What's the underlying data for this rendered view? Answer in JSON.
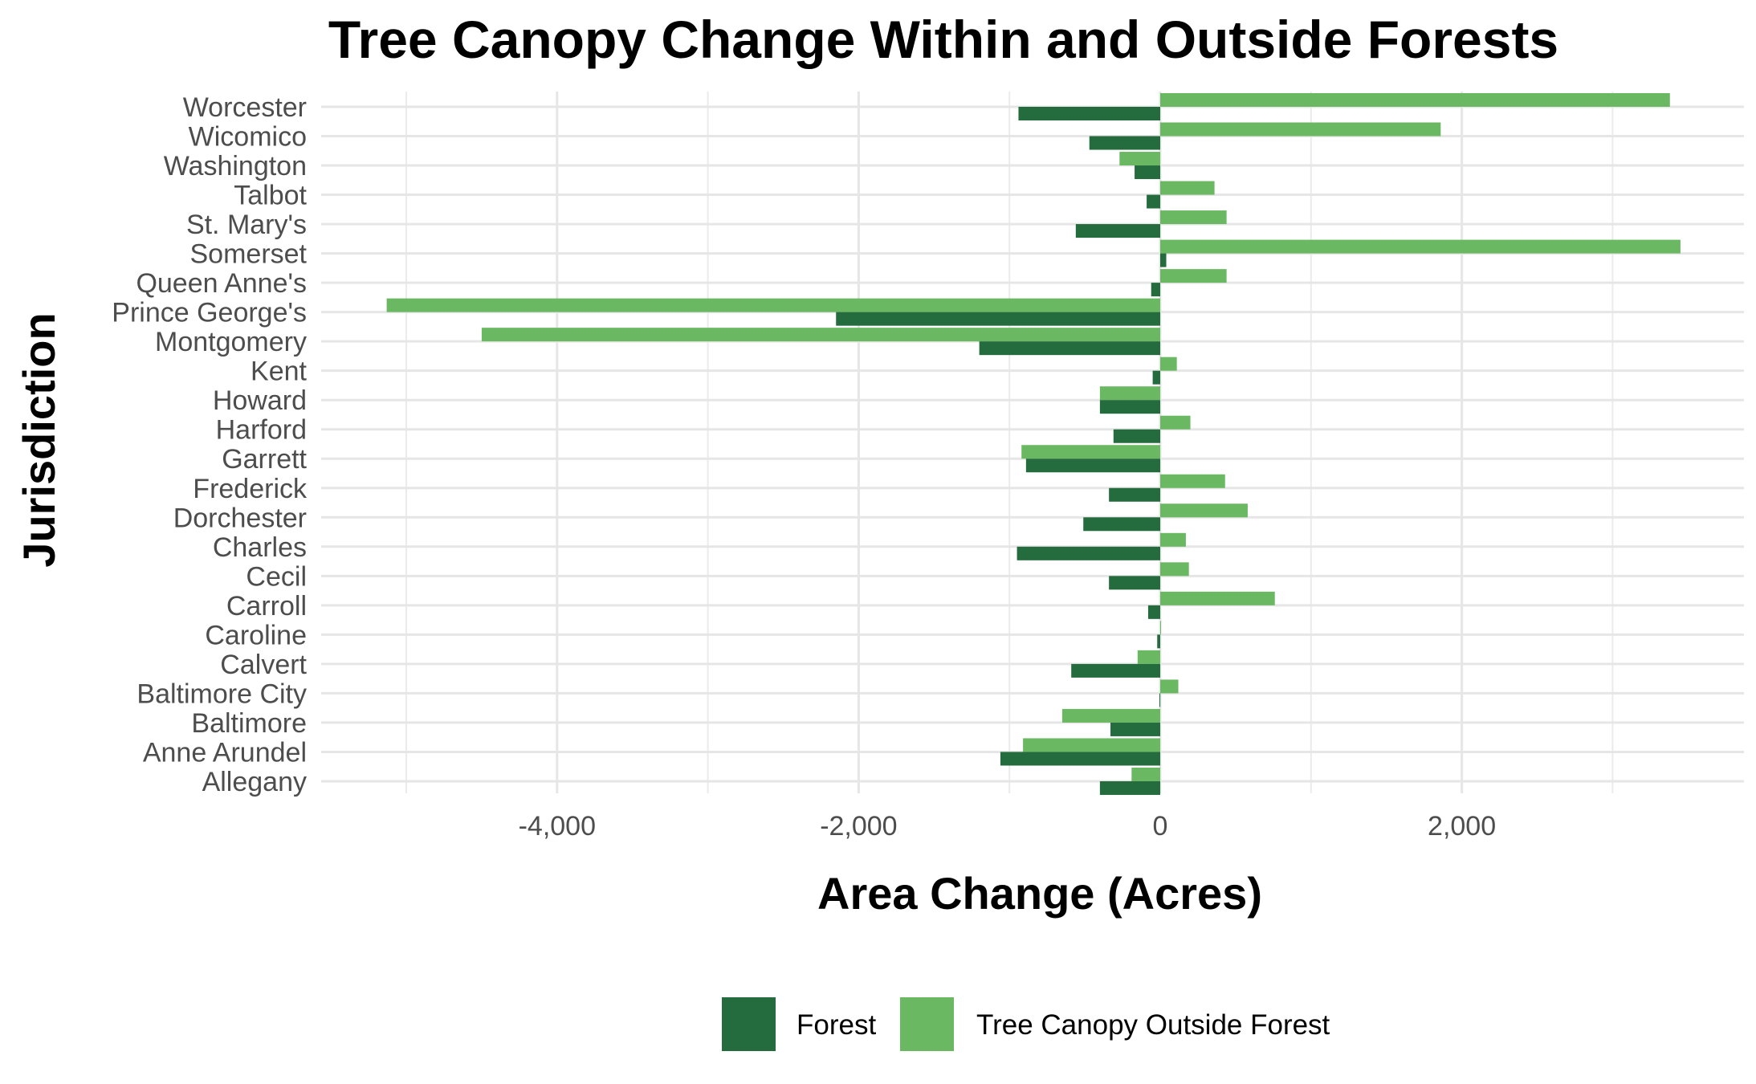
{
  "chart_data": {
    "type": "bar",
    "orientation": "horizontal",
    "title": "Tree Canopy Change Within and Outside Forests",
    "xlabel": "Area Change (Acres)",
    "ylabel": "Jurisdiction",
    "xlim": [
      -5500,
      3850
    ],
    "x_ticks": [
      -4000,
      -2000,
      0,
      2000
    ],
    "x_tick_labels": [
      "-4,000",
      "-2,000",
      "0",
      "2,000"
    ],
    "grid": true,
    "legend_position": "bottom",
    "colors": {
      "Forest": "#246b3d",
      "Tree Canopy Outside Forest": "#6ab862"
    },
    "categories": [
      "Worcester",
      "Wicomico",
      "Washington",
      "Talbot",
      "St. Mary's",
      "Somerset",
      "Queen Anne's",
      "Prince George's",
      "Montgomery",
      "Kent",
      "Howard",
      "Harford",
      "Garrett",
      "Frederick",
      "Dorchester",
      "Charles",
      "Cecil",
      "Carroll",
      "Caroline",
      "Calvert",
      "Baltimore City",
      "Baltimore",
      "Anne Arundel",
      "Allegany"
    ],
    "series": [
      {
        "name": "Forest",
        "values": [
          -940,
          -470,
          -170,
          -90,
          -560,
          40,
          -60,
          -2150,
          -1200,
          -50,
          -400,
          -310,
          -890,
          -340,
          -510,
          -950,
          -340,
          -80,
          -20,
          -590,
          -5,
          -330,
          -1060,
          -400
        ]
      },
      {
        "name": "Tree Canopy Outside Forest",
        "values": [
          3380,
          1860,
          -270,
          360,
          440,
          3450,
          440,
          -5130,
          -4500,
          110,
          -400,
          200,
          -920,
          430,
          580,
          170,
          190,
          760,
          5,
          -150,
          120,
          -650,
          -910,
          -190
        ]
      }
    ]
  }
}
